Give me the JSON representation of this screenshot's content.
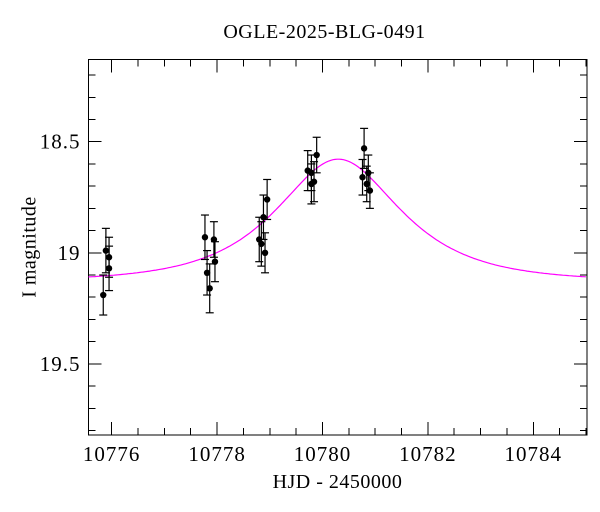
{
  "chart_data": {
    "type": "scatter",
    "title": "OGLE-2025-BLG-0491",
    "xlabel": "HJD - 2450000",
    "ylabel": "I magnitude",
    "background_color": "#ffffff",
    "axis_color": "#000000",
    "grid": false,
    "legend": "none",
    "xlim": [
      10775.56,
      10785.02
    ],
    "ylim": [
      19.82,
      18.13
    ],
    "y_inverted_magnitude_axis": true,
    "xticks": {
      "major": [
        10776,
        10778,
        10780,
        10782,
        10784
      ],
      "labels": [
        "10776",
        "10778",
        "10780",
        "10782",
        "10784"
      ],
      "minor_step": 0.5
    },
    "yticks": {
      "major": [
        18.5,
        19.0,
        19.5
      ],
      "labels": [
        "18.5",
        "19",
        "19.5"
      ],
      "minor_step": 0.1
    },
    "points": {
      "marker": "filled-circle",
      "color": "#000000",
      "error_bar_color": "#000000",
      "data_format": [
        "hjd_minus_2450000",
        "i_magnitude",
        "mag_error"
      ],
      "data": [
        [
          10775.84,
          19.19,
          0.09
        ],
        [
          10775.89,
          18.99,
          0.1
        ],
        [
          10775.95,
          19.02,
          0.09
        ],
        [
          10775.95,
          19.07,
          0.1
        ],
        [
          10777.77,
          18.93,
          0.1
        ],
        [
          10777.81,
          19.09,
          0.1
        ],
        [
          10777.86,
          19.16,
          0.11
        ],
        [
          10777.94,
          18.94,
          0.08
        ],
        [
          10777.96,
          19.04,
          0.09
        ],
        [
          10778.8,
          18.94,
          0.1
        ],
        [
          10778.84,
          18.96,
          0.1
        ],
        [
          10778.88,
          18.84,
          0.1
        ],
        [
          10778.91,
          19.0,
          0.09
        ],
        [
          10778.95,
          18.76,
          0.09
        ],
        [
          10779.72,
          18.63,
          0.09
        ],
        [
          10779.79,
          18.64,
          0.08
        ],
        [
          10779.79,
          18.69,
          0.09
        ],
        [
          10779.84,
          18.68,
          0.09
        ],
        [
          10779.89,
          18.56,
          0.08
        ],
        [
          10780.76,
          18.66,
          0.08
        ],
        [
          10780.79,
          18.53,
          0.09
        ],
        [
          10780.84,
          18.69,
          0.08
        ],
        [
          10780.87,
          18.64,
          0.08
        ],
        [
          10780.9,
          18.72,
          0.08
        ]
      ]
    },
    "model_curve": {
      "name": "paczynski-microlensing-fit",
      "color": "#ff00ff",
      "params": {
        "t0": 10780.3,
        "tE": 1.71,
        "u0": 0.71,
        "baseline_mag": 19.13
      },
      "peak": {
        "t": 10780.3,
        "mag": 18.58
      }
    }
  }
}
